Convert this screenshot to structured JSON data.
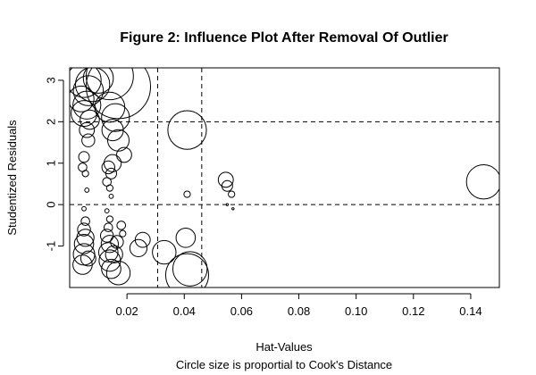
{
  "chart_data": {
    "type": "scatter",
    "title": "Figure 2: Influence Plot After Removal Of Outlier",
    "xlabel": "Hat-Values",
    "xlabel_sub": "Circle size is proportial to Cook's Distance",
    "ylabel": "Studentized Residuals",
    "xlim": [
      0.0,
      0.15
    ],
    "ylim": [
      -2.0,
      3.3
    ],
    "xticks": [
      0.02,
      0.04,
      0.06,
      0.08,
      0.1,
      0.12,
      0.14
    ],
    "xtick_labels": [
      "0.02",
      "0.04",
      "0.06",
      "0.08",
      "0.10",
      "0.12",
      "0.14"
    ],
    "yticks": [
      -1,
      0,
      1,
      2,
      3
    ],
    "ytick_labels": [
      "-1",
      "0",
      "1",
      "2",
      "3"
    ],
    "reference_lines": {
      "horizontal": [
        -2,
        0,
        2
      ],
      "vertical": [
        0.0307,
        0.0461
      ],
      "style": "dashed"
    },
    "marker": "open-circle",
    "cooks_distance_scale_note": "size is radius in relative units proportional to sqrt of Cook's distance",
    "points": [
      {
        "x": 0.005,
        "y": 3.0,
        "size": 16
      },
      {
        "x": 0.0065,
        "y": 2.75,
        "size": 14
      },
      {
        "x": 0.008,
        "y": 2.9,
        "size": 16
      },
      {
        "x": 0.01,
        "y": 3.05,
        "size": 14
      },
      {
        "x": 0.017,
        "y": 2.85,
        "size": 30
      },
      {
        "x": 0.014,
        "y": 3.1,
        "size": 22
      },
      {
        "x": 0.004,
        "y": 2.55,
        "size": 12
      },
      {
        "x": 0.006,
        "y": 2.4,
        "size": 13
      },
      {
        "x": 0.005,
        "y": 2.2,
        "size": 12
      },
      {
        "x": 0.007,
        "y": 2.05,
        "size": 9
      },
      {
        "x": 0.006,
        "y": 1.8,
        "size": 7
      },
      {
        "x": 0.0065,
        "y": 1.55,
        "size": 6
      },
      {
        "x": 0.005,
        "y": 1.15,
        "size": 5
      },
      {
        "x": 0.0045,
        "y": 0.9,
        "size": 4
      },
      {
        "x": 0.0055,
        "y": 0.75,
        "size": 3
      },
      {
        "x": 0.006,
        "y": 0.35,
        "size": 2
      },
      {
        "x": 0.005,
        "y": -0.1,
        "size": 2
      },
      {
        "x": 0.0055,
        "y": -0.4,
        "size": 4
      },
      {
        "x": 0.005,
        "y": -0.6,
        "size": 6
      },
      {
        "x": 0.0055,
        "y": -0.8,
        "size": 8
      },
      {
        "x": 0.005,
        "y": -0.95,
        "size": 9
      },
      {
        "x": 0.005,
        "y": -1.2,
        "size": 10
      },
      {
        "x": 0.0045,
        "y": -1.45,
        "size": 9
      },
      {
        "x": 0.0065,
        "y": -1.3,
        "size": 7
      },
      {
        "x": 0.014,
        "y": 2.35,
        "size": 14
      },
      {
        "x": 0.016,
        "y": 2.1,
        "size": 13
      },
      {
        "x": 0.015,
        "y": 1.8,
        "size": 10
      },
      {
        "x": 0.017,
        "y": 1.55,
        "size": 10
      },
      {
        "x": 0.019,
        "y": 1.2,
        "size": 7
      },
      {
        "x": 0.015,
        "y": 1.0,
        "size": 8
      },
      {
        "x": 0.0135,
        "y": 0.9,
        "size": 6
      },
      {
        "x": 0.0145,
        "y": 0.75,
        "size": 5
      },
      {
        "x": 0.013,
        "y": 0.55,
        "size": 4
      },
      {
        "x": 0.014,
        "y": 0.4,
        "size": 3
      },
      {
        "x": 0.0145,
        "y": 0.2,
        "size": 2
      },
      {
        "x": 0.013,
        "y": -0.15,
        "size": 2
      },
      {
        "x": 0.014,
        "y": -0.35,
        "size": 3
      },
      {
        "x": 0.0135,
        "y": -0.55,
        "size": 4
      },
      {
        "x": 0.013,
        "y": -0.75,
        "size": 6
      },
      {
        "x": 0.014,
        "y": -0.95,
        "size": 8
      },
      {
        "x": 0.0135,
        "y": -1.15,
        "size": 9
      },
      {
        "x": 0.014,
        "y": -1.35,
        "size": 10
      },
      {
        "x": 0.0145,
        "y": -1.55,
        "size": 9
      },
      {
        "x": 0.0155,
        "y": -1.2,
        "size": 8
      },
      {
        "x": 0.0165,
        "y": -0.9,
        "size": 6
      },
      {
        "x": 0.018,
        "y": -0.5,
        "size": 4
      },
      {
        "x": 0.017,
        "y": -1.65,
        "size": 11
      },
      {
        "x": 0.0185,
        "y": -0.7,
        "size": 3
      },
      {
        "x": 0.0255,
        "y": -0.85,
        "size": 7
      },
      {
        "x": 0.024,
        "y": -1.05,
        "size": 8
      },
      {
        "x": 0.033,
        "y": -1.15,
        "size": 11
      },
      {
        "x": 0.0405,
        "y": -0.8,
        "size": 9
      },
      {
        "x": 0.041,
        "y": -1.7,
        "size": 20
      },
      {
        "x": 0.042,
        "y": -1.55,
        "size": 16
      },
      {
        "x": 0.041,
        "y": 1.8,
        "size": 18
      },
      {
        "x": 0.041,
        "y": 0.25,
        "size": 3
      },
      {
        "x": 0.0545,
        "y": 0.6,
        "size": 7
      },
      {
        "x": 0.055,
        "y": 0.45,
        "size": 5
      },
      {
        "x": 0.0565,
        "y": 0.25,
        "size": 3
      },
      {
        "x": 0.055,
        "y": 0.0,
        "size": 1
      },
      {
        "x": 0.057,
        "y": -0.1,
        "size": 1
      },
      {
        "x": 0.1445,
        "y": 0.55,
        "size": 16
      }
    ]
  }
}
